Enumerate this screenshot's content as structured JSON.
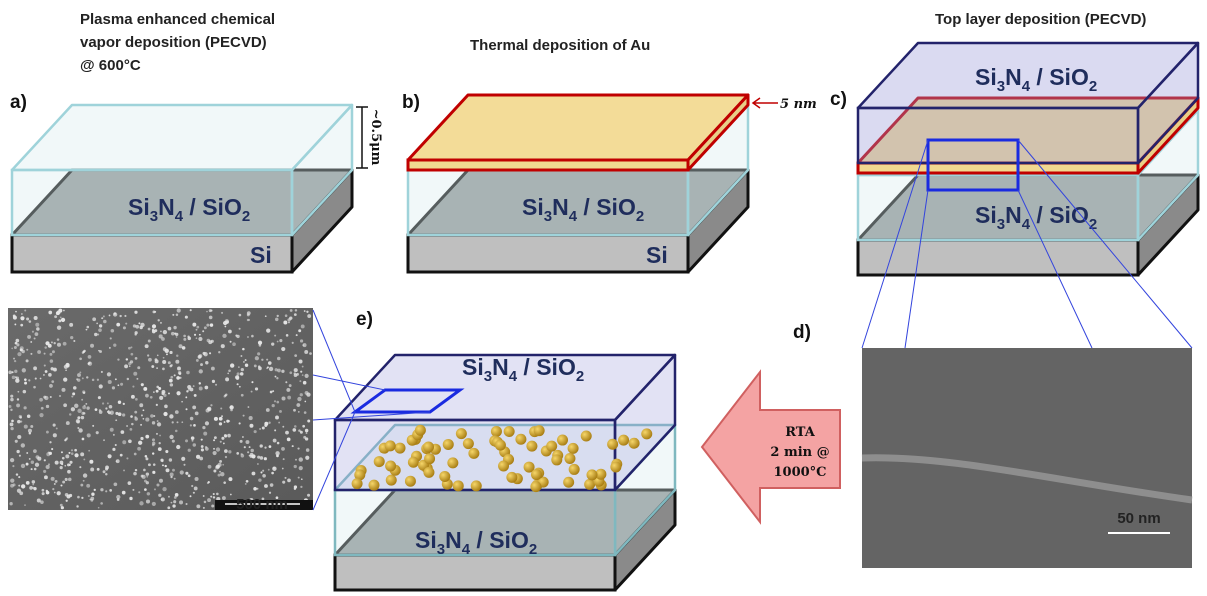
{
  "panels": {
    "a": {
      "letter": "a)",
      "title": [
        "Plasma enhanced chemical",
        "vapor deposition (PECVD)",
        "@ 600°C"
      ],
      "thickness": "~0.5μm",
      "substrate": "Si"
    },
    "b": {
      "letter": "b)",
      "title": "Thermal deposition of Au",
      "au_thickness": "5 nm",
      "substrate": "Si"
    },
    "c": {
      "letter": "c)",
      "title": "Top layer deposition (PECVD)"
    },
    "d": {
      "letter": "d)",
      "scale_bar": "50 nm"
    },
    "e": {
      "letter": "e)",
      "scale_bar": "500 nm"
    }
  },
  "film_label": [
    "Si",
    "3",
    "N",
    "4",
    " / SiO",
    "2"
  ],
  "anneal": [
    "RTA",
    "2 min @",
    "1000°C"
  ]
}
